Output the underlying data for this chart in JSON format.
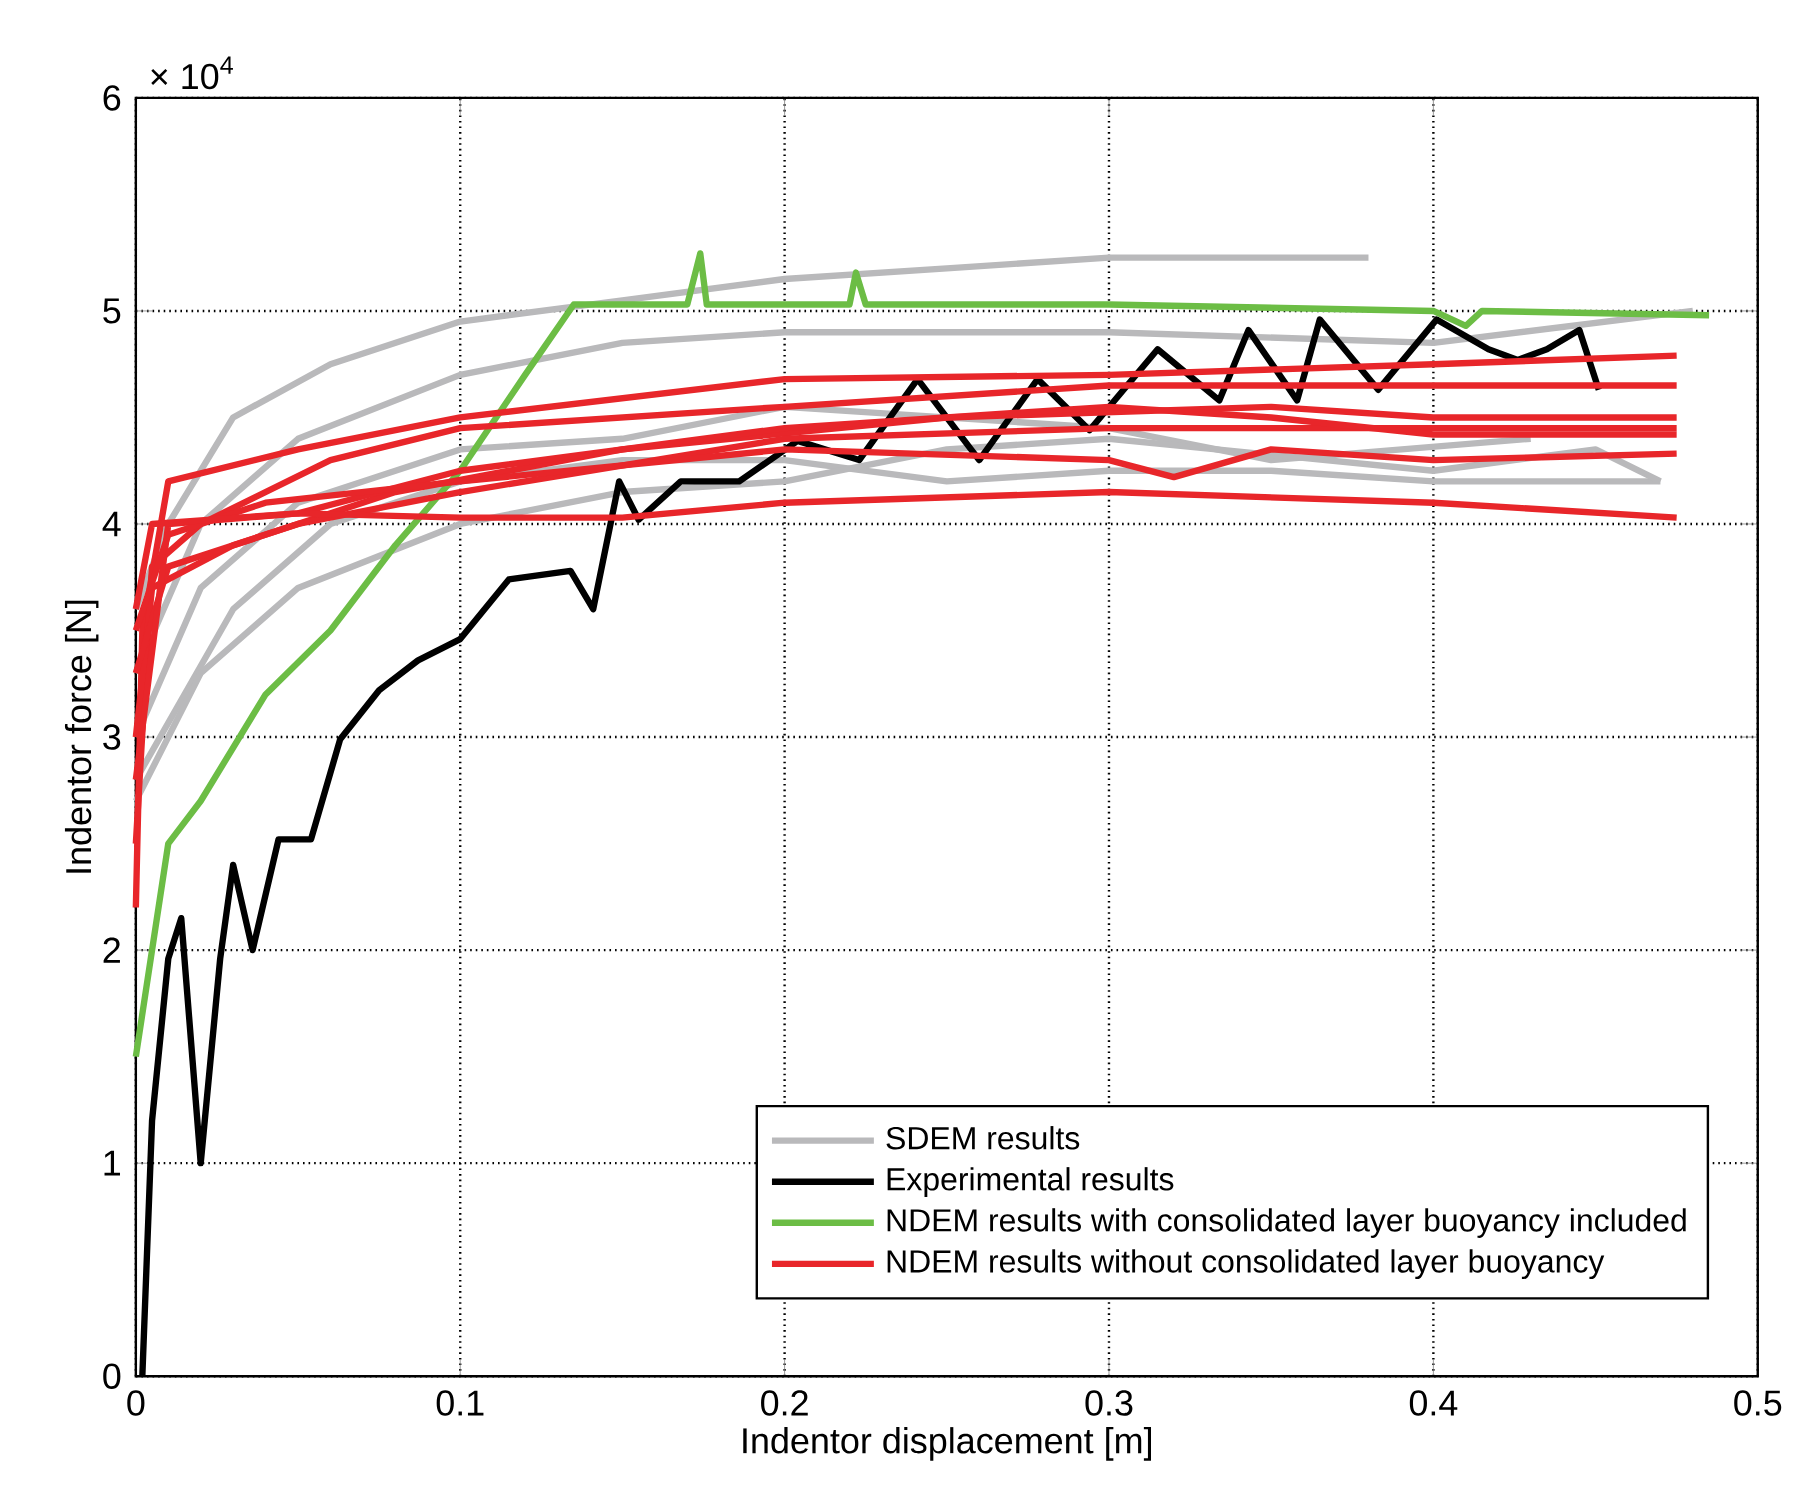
{
  "chart_data": {
    "type": "line",
    "xlabel": "Indentor displacement [m]",
    "ylabel": "Indentor force [N]",
    "annotations": [
      "× 10$^{4}$"
    ],
    "xlim": [
      0,
      0.5
    ],
    "ylim": [
      0,
      6
    ],
    "xticks": [
      0,
      0.1,
      0.2,
      0.3,
      0.4,
      0.5
    ],
    "yticks": [
      0,
      1,
      2,
      3,
      4,
      5,
      6
    ],
    "grid": true,
    "legend": "bottom right",
    "line_style": "solid",
    "marker": "none",
    "series": [
      {
        "name": "SDEM results",
        "color": "#b9b9bb",
        "x": [
          0,
          0.01,
          0.03,
          0.06,
          0.1,
          0.15,
          0.2,
          0.25,
          0.3,
          0.35,
          0.38
        ],
        "values": [
          3.6,
          4.0,
          4.5,
          4.75,
          4.95,
          5.05,
          5.15,
          5.2,
          5.25,
          5.25,
          5.25
        ]
      },
      {
        "color": "#b9b9bb",
        "x": [
          0,
          0.02,
          0.05,
          0.1,
          0.15,
          0.2,
          0.3,
          0.4,
          0.48
        ],
        "values": [
          3.3,
          4.0,
          4.4,
          4.7,
          4.85,
          4.9,
          4.9,
          4.85,
          5.0
        ]
      },
      {
        "color": "#b9b9bb",
        "x": [
          0,
          0.02,
          0.05,
          0.1,
          0.15,
          0.2,
          0.3,
          0.35,
          0.43
        ],
        "values": [
          3.0,
          3.7,
          4.1,
          4.35,
          4.4,
          4.55,
          4.45,
          4.3,
          4.4
        ]
      },
      {
        "color": "#b9b9bb",
        "x": [
          0,
          0.03,
          0.06,
          0.1,
          0.15,
          0.2,
          0.25,
          0.3,
          0.35,
          0.4,
          0.47
        ],
        "values": [
          2.8,
          3.6,
          4.0,
          4.2,
          4.3,
          4.3,
          4.2,
          4.25,
          4.25,
          4.2,
          4.2
        ]
      },
      {
        "color": "#b9b9bb",
        "x": [
          0,
          0.02,
          0.05,
          0.1,
          0.15,
          0.2,
          0.25,
          0.3,
          0.4,
          0.45,
          0.47
        ],
        "values": [
          2.7,
          3.3,
          3.7,
          4.0,
          4.15,
          4.2,
          4.35,
          4.4,
          4.25,
          4.35,
          4.2
        ]
      },
      {
        "name": "Experimental results",
        "color": "#000000",
        "x": [
          0.002,
          0.005,
          0.01,
          0.014,
          0.02,
          0.026,
          0.03,
          0.036,
          0.044,
          0.054,
          0.063,
          0.075,
          0.087,
          0.1,
          0.115,
          0.134,
          0.141,
          0.149,
          0.155,
          0.168,
          0.186,
          0.204,
          0.223,
          0.241,
          0.26,
          0.278,
          0.294,
          0.315,
          0.334,
          0.343,
          0.358,
          0.365,
          0.383,
          0.401,
          0.417,
          0.426,
          0.435,
          0.445,
          0.451
        ],
        "values": [
          0,
          1.2,
          1.96,
          2.15,
          1.0,
          1.96,
          2.4,
          2.0,
          2.52,
          2.52,
          2.99,
          3.22,
          3.36,
          3.46,
          3.74,
          3.78,
          3.6,
          4.2,
          4.02,
          4.2,
          4.2,
          4.39,
          4.3,
          4.68,
          4.3,
          4.68,
          4.44,
          4.82,
          4.58,
          4.91,
          4.58,
          4.96,
          4.63,
          4.96,
          4.82,
          4.77,
          4.82,
          4.91,
          4.63
        ]
      },
      {
        "name": "NDEM results with consolidated layer buoyancy included",
        "color": "#6cbd45",
        "x": [
          0,
          0.01,
          0.02,
          0.04,
          0.06,
          0.08,
          0.1,
          0.12,
          0.135,
          0.17,
          0.174,
          0.176,
          0.22,
          0.222,
          0.225,
          0.3,
          0.4,
          0.41,
          0.415,
          0.485
        ],
        "values": [
          1.5,
          2.5,
          2.7,
          3.2,
          3.5,
          3.9,
          4.25,
          4.7,
          5.03,
          5.03,
          5.27,
          5.03,
          5.03,
          5.18,
          5.03,
          5.03,
          5.0,
          4.93,
          5.0,
          4.98
        ]
      },
      {
        "name": "NDEM results without consolidated layer buoyancy",
        "color": "#e8262a",
        "x": [
          0,
          0.002,
          0.01,
          0.05,
          0.1,
          0.2,
          0.3,
          0.4,
          0.475
        ],
        "values": [
          2.2,
          3.5,
          4.2,
          4.35,
          4.5,
          4.68,
          4.7,
          4.75,
          4.79
        ]
      },
      {
        "color": "#e8262a",
        "x": [
          0,
          0.005,
          0.02,
          0.06,
          0.1,
          0.2,
          0.3,
          0.4,
          0.475
        ],
        "values": [
          2.5,
          3.8,
          4.0,
          4.3,
          4.45,
          4.55,
          4.65,
          4.65,
          4.65
        ]
      },
      {
        "color": "#e8262a",
        "x": [
          0,
          0.005,
          0.03,
          0.08,
          0.15,
          0.25,
          0.35,
          0.4,
          0.475
        ],
        "values": [
          3.0,
          3.7,
          3.9,
          4.15,
          4.35,
          4.5,
          4.55,
          4.5,
          4.5
        ]
      },
      {
        "color": "#e8262a",
        "x": [
          0,
          0.01,
          0.05,
          0.1,
          0.2,
          0.3,
          0.4,
          0.475
        ],
        "values": [
          3.3,
          3.8,
          4.0,
          4.15,
          4.4,
          4.45,
          4.45,
          4.45
        ]
      },
      {
        "color": "#e8262a",
        "x": [
          0,
          0.01,
          0.05,
          0.1,
          0.2,
          0.3,
          0.35,
          0.4,
          0.475
        ],
        "values": [
          2.8,
          4.0,
          4.05,
          4.25,
          4.45,
          4.55,
          4.5,
          4.42,
          4.42
        ]
      },
      {
        "color": "#e8262a",
        "x": [
          0,
          0.01,
          0.04,
          0.1,
          0.2,
          0.3,
          0.32,
          0.35,
          0.4,
          0.475
        ],
        "values": [
          3.5,
          3.95,
          4.1,
          4.2,
          4.35,
          4.3,
          4.22,
          4.35,
          4.3,
          4.33
        ]
      },
      {
        "color": "#e8262a",
        "x": [
          0,
          0.005,
          0.05,
          0.1,
          0.15,
          0.2,
          0.3,
          0.4,
          0.475
        ],
        "values": [
          3.6,
          4.0,
          4.05,
          4.03,
          4.03,
          4.1,
          4.15,
          4.1,
          4.03
        ]
      }
    ]
  }
}
